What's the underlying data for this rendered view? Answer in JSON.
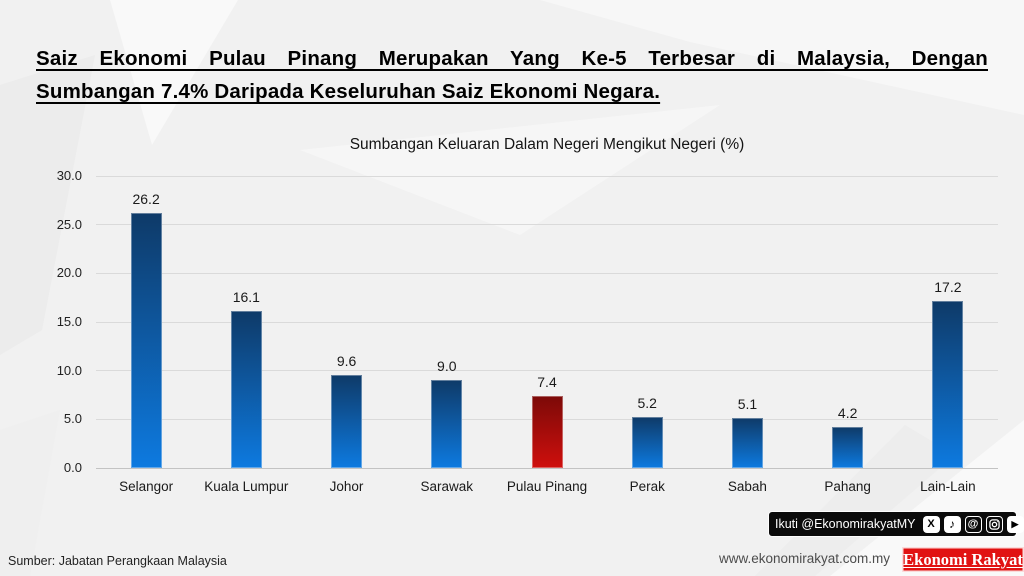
{
  "header": {
    "title_line1": "Saiz Ekonomi Pulau Pinang Merupakan Yang Ke-5 Terbesar di Malaysia, Dengan",
    "title_line2": "Sumbangan 7.4% Daripada Keseluruhan Saiz Ekonomi Negara."
  },
  "chart_data": {
    "type": "bar",
    "title": "Sumbangan Keluaran Dalam Negeri Mengikut Negeri (%)",
    "categories": [
      "Selangor",
      "Kuala Lumpur",
      "Johor",
      "Sarawak",
      "Pulau Pinang",
      "Perak",
      "Sabah",
      "Pahang",
      "Lain-Lain"
    ],
    "values": [
      26.2,
      16.1,
      9.6,
      9.0,
      7.4,
      5.2,
      5.1,
      4.2,
      17.2
    ],
    "highlight_index": 4,
    "highlight_category": "Pulau Pinang",
    "ylim": [
      0,
      30
    ],
    "ytick_step": 5,
    "ytick_labels": [
      "0.0",
      "5.0",
      "10.0",
      "15.0",
      "20.0",
      "25.0",
      "30.0"
    ],
    "grid": true,
    "legend": "none",
    "bar_gradient_top": "#0e3a68",
    "bar_gradient_bottom": "#0d7ae0",
    "highlight_gradient_top": "#7c0a08",
    "highlight_gradient_bottom": "#cf0f0d"
  },
  "footer": {
    "source": "Sumber: Jabatan Perangkaan Malaysia",
    "website": "www.ekonomirakyat.com.my",
    "logo_text": "Ekonomi Rakyat",
    "logo_color": "#e11212",
    "social": {
      "label": "Ikuti @EkonomirakyatMY",
      "icons": [
        "x-twitter",
        "tiktok",
        "threads",
        "instagram",
        "youtube",
        "telegram"
      ]
    }
  }
}
